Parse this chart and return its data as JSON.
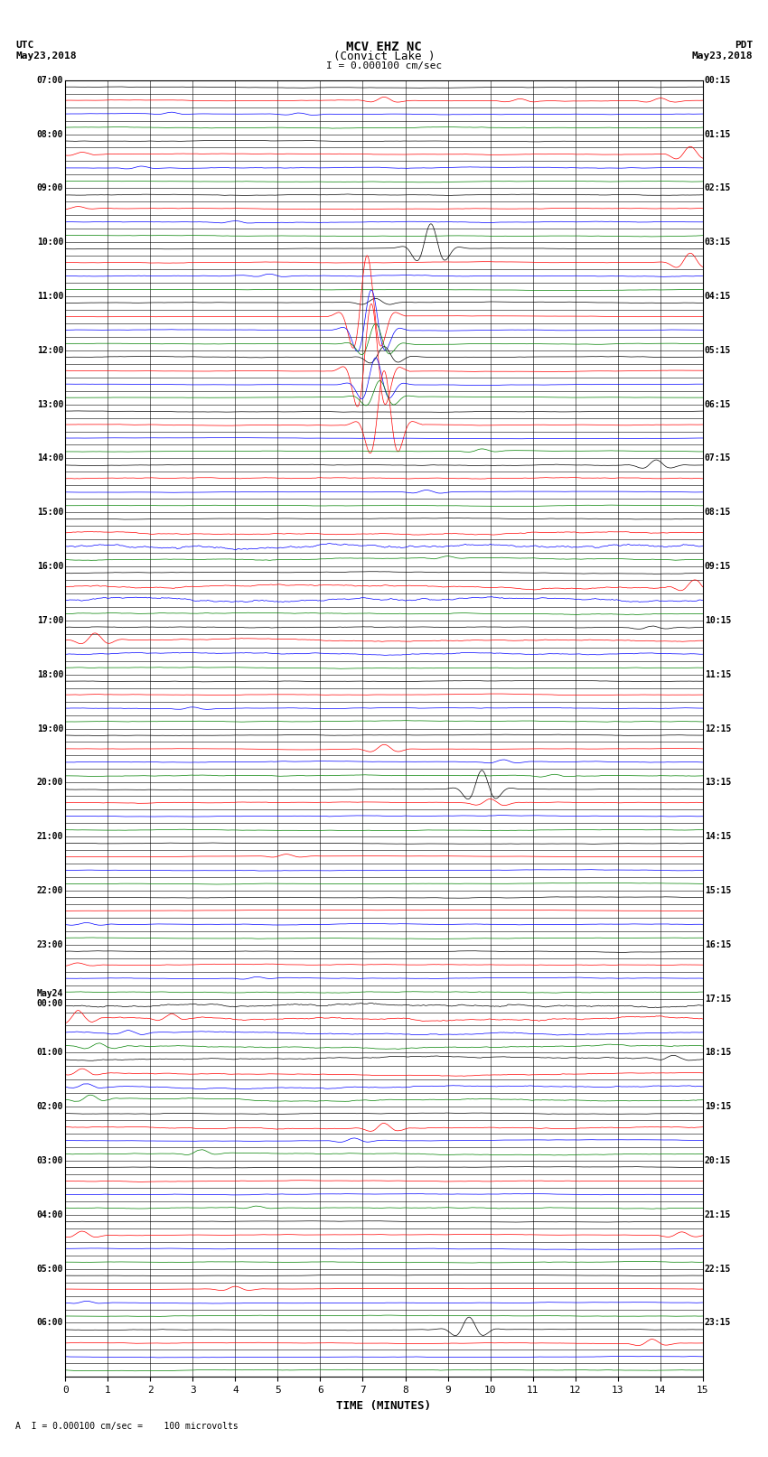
{
  "title_line1": "MCV EHZ NC",
  "title_line2": "(Convict Lake )",
  "scale_label": "I = 0.000100 cm/sec",
  "xlabel": "TIME (MINUTES)",
  "footer_label": "A  I = 0.000100 cm/sec =    100 microvolts",
  "xlim": [
    0,
    15
  ],
  "xticks": [
    0,
    1,
    2,
    3,
    4,
    5,
    6,
    7,
    8,
    9,
    10,
    11,
    12,
    13,
    14,
    15
  ],
  "figsize": [
    8.5,
    16.13
  ],
  "dpi": 100,
  "bg_color": "#ffffff",
  "row_labels_utc": [
    "07:00",
    "08:00",
    "09:00",
    "10:00",
    "11:00",
    "12:00",
    "13:00",
    "14:00",
    "15:00",
    "16:00",
    "17:00",
    "18:00",
    "19:00",
    "20:00",
    "21:00",
    "22:00",
    "23:00",
    "May24\n00:00",
    "01:00",
    "02:00",
    "03:00",
    "04:00",
    "05:00",
    "06:00"
  ],
  "row_labels_pdt": [
    "00:15",
    "01:15",
    "02:15",
    "03:15",
    "04:15",
    "05:15",
    "06:15",
    "07:15",
    "08:15",
    "09:15",
    "10:15",
    "11:15",
    "12:15",
    "13:15",
    "14:15",
    "15:15",
    "16:15",
    "17:15",
    "18:15",
    "19:15",
    "20:15",
    "21:15",
    "22:15",
    "23:15"
  ],
  "subrow_colors": [
    "black",
    "red",
    "blue",
    "green"
  ],
  "num_hours": 24,
  "subrows_per_hour": 4
}
